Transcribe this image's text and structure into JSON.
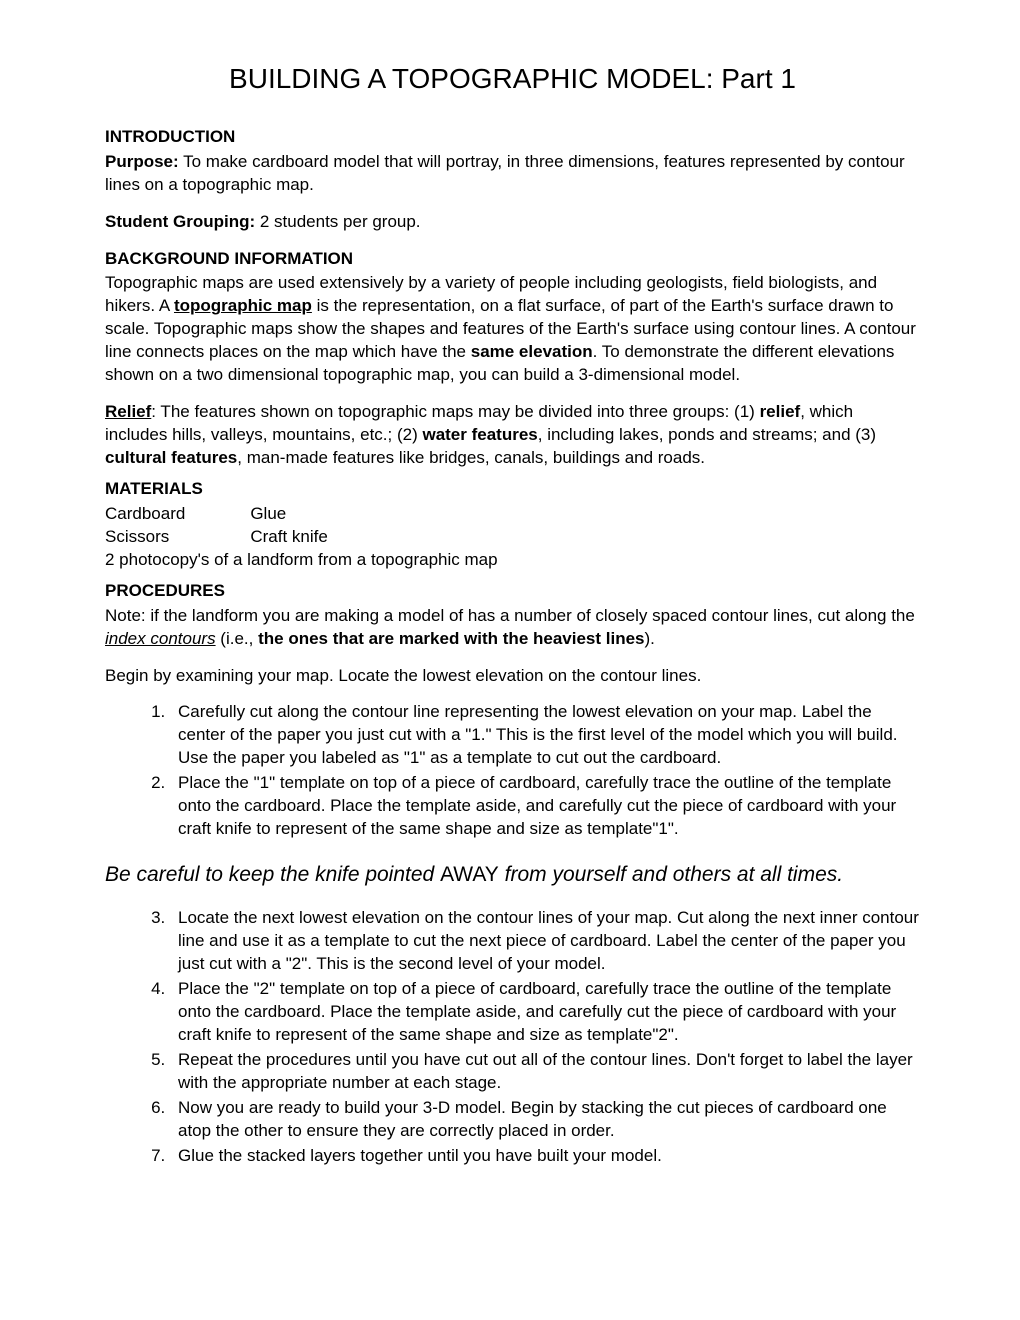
{
  "title": "BUILDING A TOPOGRAPHIC MODEL: Part 1",
  "introduction": {
    "heading": "INTRODUCTION",
    "purpose_label": "Purpose:",
    "purpose_text": " To make cardboard model that will portray, in three dimensions, features represented by contour lines on a topographic map.",
    "grouping_label": "Student Grouping:",
    "grouping_text": " 2 students per group."
  },
  "background": {
    "heading": "BACKGROUND INFORMATION",
    "p1_a": "Topographic maps are used extensively by a variety of people including geologists, field biologists, and hikers. A ",
    "p1_topo": "topographic map",
    "p1_b": " is the representation, on a flat surface, of part of the Earth's surface drawn to scale. Topographic maps show the shapes and features of the Earth's surface using contour lines. A contour line connects places on the map which have the ",
    "p1_same": "same elevation",
    "p1_c": ". To demonstrate the different elevations shown on a two dimensional topographic map, you can build a 3-dimensional model.",
    "p2_relief": "Relief",
    "p2_a": ": The features shown on topographic maps may be divided into three groups: (1) ",
    "p2_relief2": "relief",
    "p2_b": ", which includes hills, valleys, mountains, etc.; (2) ",
    "p2_water": "water features",
    "p2_c": ", including lakes, ponds and streams; and (3) ",
    "p2_cultural": "cultural features",
    "p2_d": ", man-made features like bridges, canals, buildings and roads."
  },
  "materials": {
    "heading": "MATERIALS",
    "col1": [
      "Cardboard",
      "Scissors"
    ],
    "col2": [
      "Glue",
      "Craft knife"
    ],
    "extra": "2 photocopy's of a landform from a topographic map"
  },
  "procedures": {
    "heading": "PROCEDURES",
    "note_a": "Note: if the landform you are making a model of has a number of closely spaced contour lines, cut along the ",
    "note_index": "index contours",
    "note_b": " (i.e., ",
    "note_heavy": "the ones that are marked with the heaviest lines",
    "note_c": ").",
    "begin": "Begin by examining your map. Locate the lowest elevation on the contour lines.",
    "steps_a": [
      "Carefully cut along the contour line representing the lowest elevation on your map. Label the center of the paper you just cut with a \"1.\" This is the first level of the model which you will build. Use the paper you labeled as \"1\" as a template to cut out the cardboard.",
      "Place the \"1\" template on top of a piece of cardboard, carefully trace the outline of the template onto the cardboard. Place the template aside, and carefully cut the piece of cardboard with your craft knife to represent of the same shape and size as template\"1\"."
    ],
    "warning_a": "Be careful to keep the knife pointed ",
    "warning_away": "AWAY",
    "warning_b": " from yourself and others at all times.",
    "steps_b": [
      "Locate the next lowest elevation on the contour lines of your map. Cut along the next inner contour line and use it as a template to cut the next piece of cardboard. Label the center of the paper you just cut with a \"2\". This is the second level of your model.",
      "Place the \"2\" template on top of a piece of cardboard, carefully trace the outline of the template onto the cardboard. Place the template aside, and carefully cut the piece of cardboard with your craft knife to represent of the same shape and size as template\"2\".",
      "Repeat the procedures until you have cut out all of the contour lines. Don't forget to label the layer with the appropriate number at each stage.",
      "Now you are ready to build your 3-D model. Begin by stacking the cut pieces of cardboard one atop the other to ensure they are correctly placed in order.",
      "Glue the stacked layers together until you have built your model."
    ]
  }
}
